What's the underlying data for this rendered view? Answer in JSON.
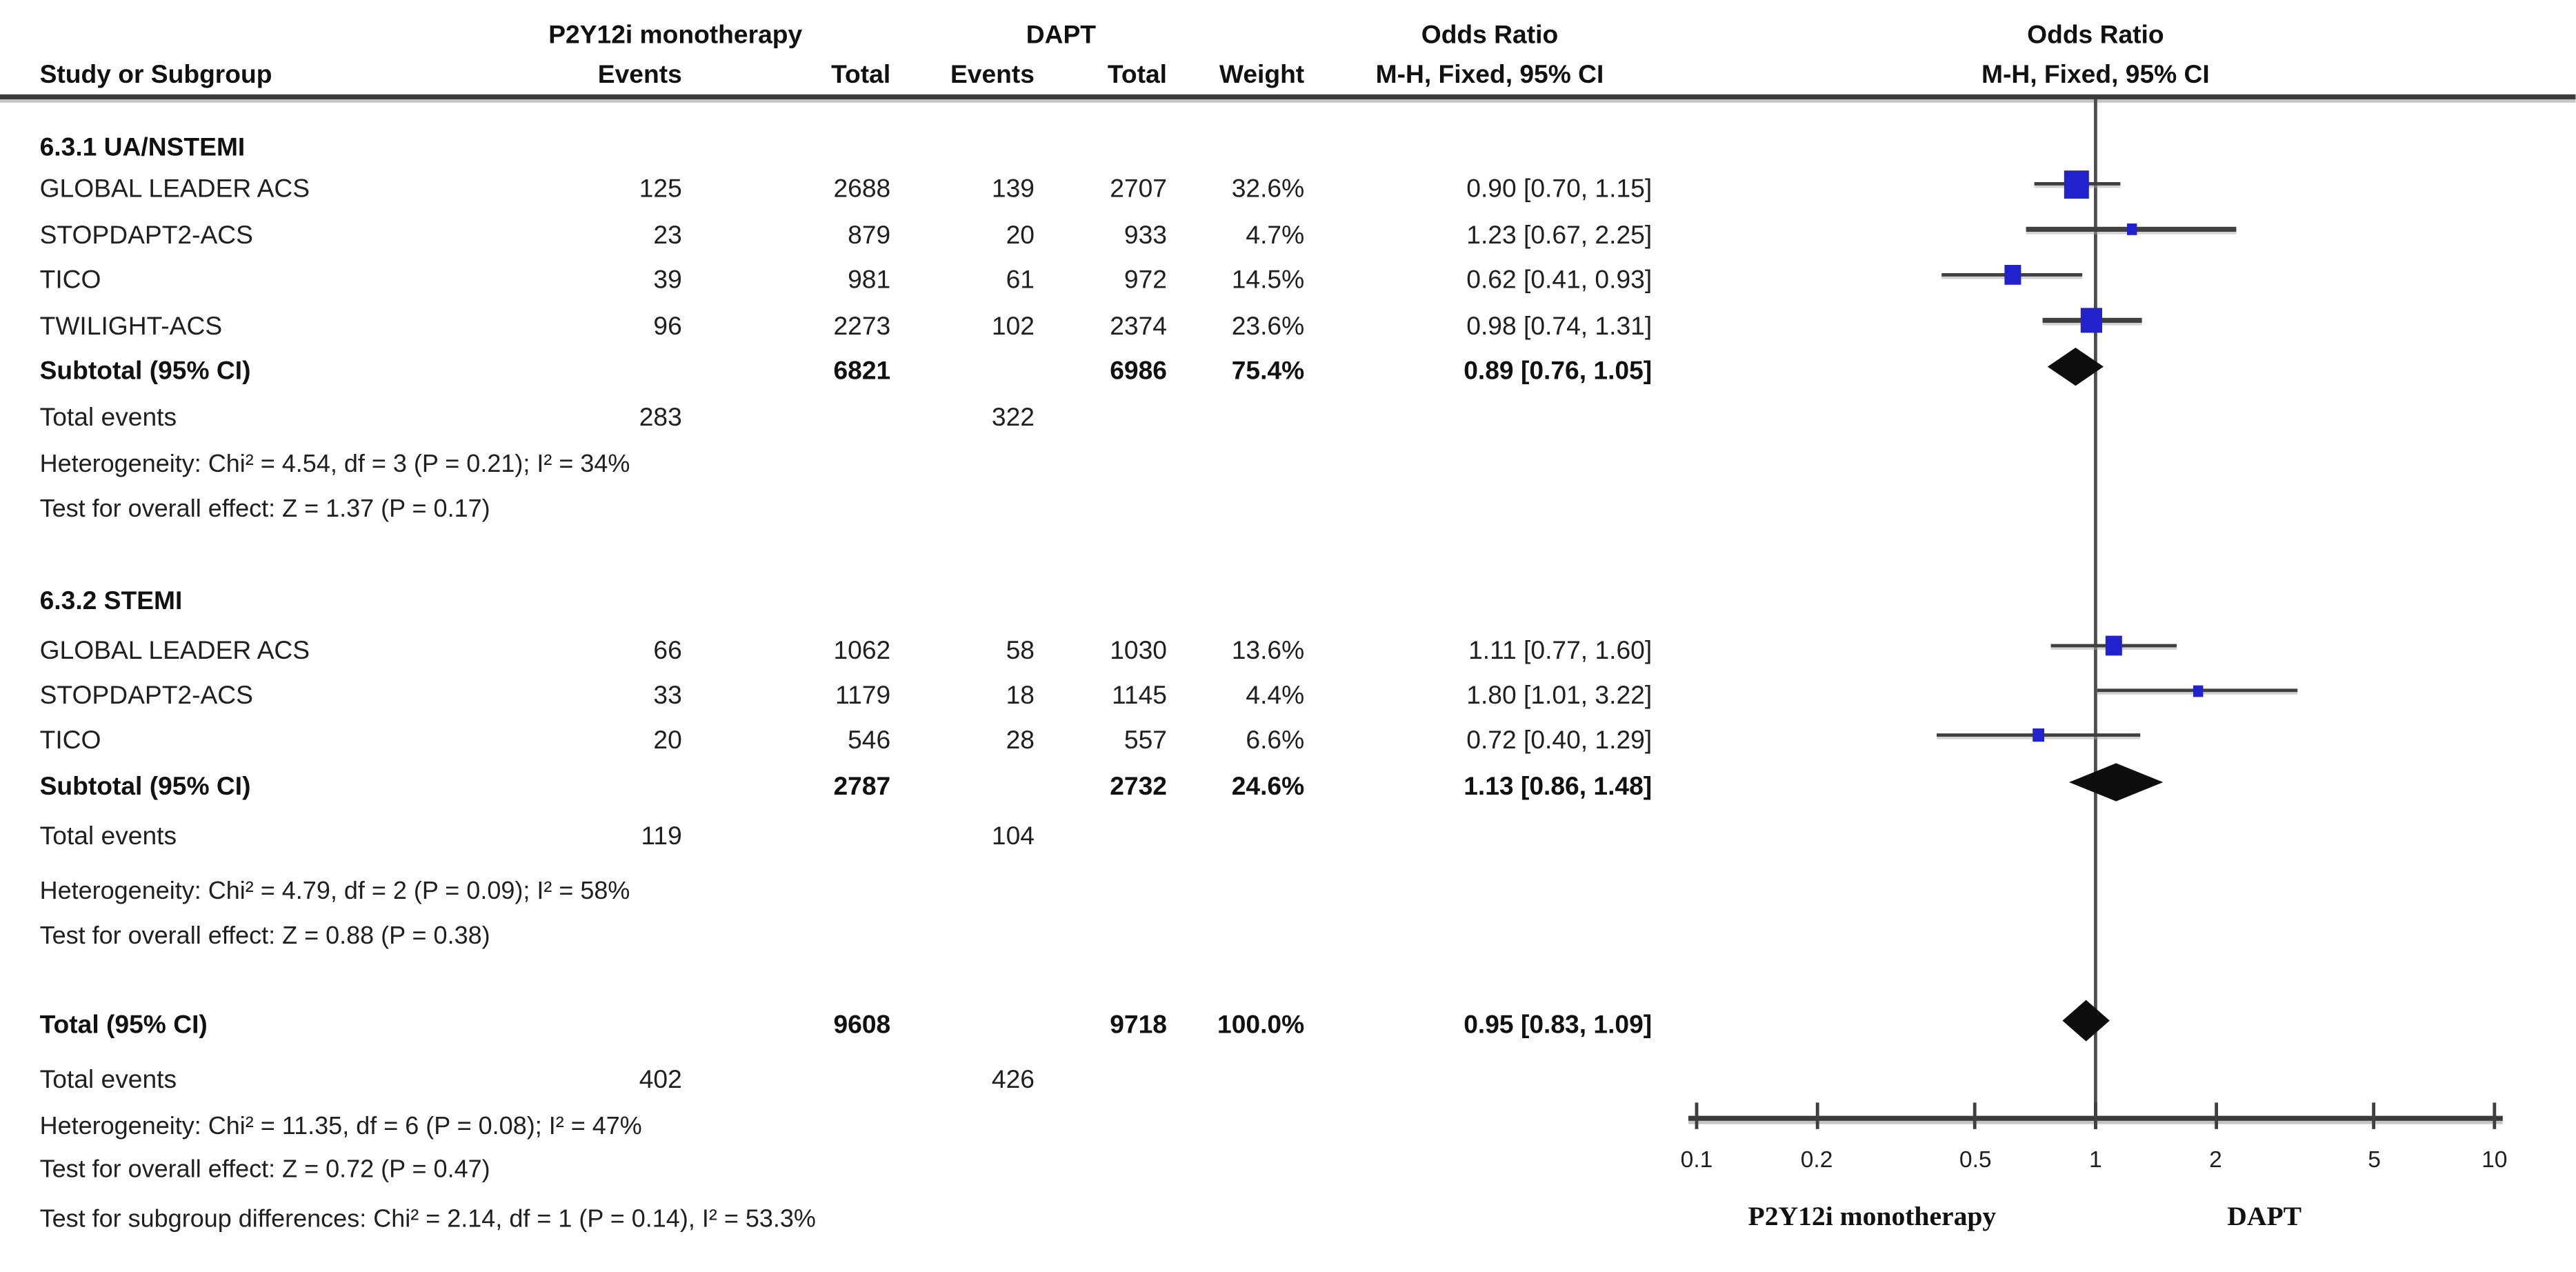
{
  "headers": {
    "group1": "P2Y12i monotherapy",
    "group2": "DAPT",
    "study_col": "Study or Subgroup",
    "events_col": "Events",
    "total_col": "Total",
    "weight_col": "Weight",
    "or_text_title": "Odds Ratio",
    "or_text_sub": "M-H, Fixed, 95% CI",
    "or_plot_title": "Odds Ratio",
    "or_plot_sub": "M-H, Fixed, 95% CI"
  },
  "sections": [
    {
      "heading": "6.3.1 UA/NSTEMI",
      "studies": [
        {
          "name": "GLOBAL LEADER ACS",
          "events1": "125",
          "total1": "2688",
          "events2": "139",
          "total2": "2707",
          "weight": "32.6%",
          "weight_value": 32.6,
          "or_text": "0.90 [0.70, 1.15]",
          "or": 0.9,
          "ci_low": 0.7,
          "ci_high": 1.15
        },
        {
          "name": "STOPDAPT2-ACS",
          "events1": "23",
          "total1": "879",
          "events2": "20",
          "total2": "933",
          "weight": "4.7%",
          "weight_value": 4.7,
          "or_text": "1.23 [0.67, 2.25]",
          "or": 1.23,
          "ci_low": 0.67,
          "ci_high": 2.25
        },
        {
          "name": "TICO",
          "events1": "39",
          "total1": "981",
          "events2": "61",
          "total2": "972",
          "weight": "14.5%",
          "weight_value": 14.5,
          "or_text": "0.62 [0.41, 0.93]",
          "or": 0.62,
          "ci_low": 0.41,
          "ci_high": 0.93
        },
        {
          "name": "TWILIGHT-ACS",
          "events1": "96",
          "total1": "2273",
          "events2": "102",
          "total2": "2374",
          "weight": "23.6%",
          "weight_value": 23.6,
          "or_text": "0.98 [0.74, 1.31]",
          "or": 0.98,
          "ci_low": 0.74,
          "ci_high": 1.31
        }
      ],
      "subtotal": {
        "label": "Subtotal (95% CI)",
        "total1": "6821",
        "total2": "6986",
        "weight": "75.4%",
        "or_text": "0.89 [0.76, 1.05]",
        "or": 0.89,
        "ci_low": 0.76,
        "ci_high": 1.05
      },
      "total_events": {
        "label": "Total events",
        "events1": "283",
        "events2": "322"
      },
      "heterogeneity": "Heterogeneity: Chi² = 4.54, df = 3 (P = 0.21); I² = 34%",
      "overall_effect": "Test for overall effect: Z = 1.37 (P = 0.17)"
    },
    {
      "heading": "6.3.2 STEMI",
      "studies": [
        {
          "name": "GLOBAL LEADER ACS",
          "events1": "66",
          "total1": "1062",
          "events2": "58",
          "total2": "1030",
          "weight": "13.6%",
          "weight_value": 13.6,
          "or_text": "1.11 [0.77, 1.60]",
          "or": 1.11,
          "ci_low": 0.77,
          "ci_high": 1.6
        },
        {
          "name": "STOPDAPT2-ACS",
          "events1": "33",
          "total1": "1179",
          "events2": "18",
          "total2": "1145",
          "weight": "4.4%",
          "weight_value": 4.4,
          "or_text": "1.80 [1.01, 3.22]",
          "or": 1.8,
          "ci_low": 1.01,
          "ci_high": 3.22
        },
        {
          "name": "TICO",
          "events1": "20",
          "total1": "546",
          "events2": "28",
          "total2": "557",
          "weight": "6.6%",
          "weight_value": 6.6,
          "or_text": "0.72 [0.40, 1.29]",
          "or": 0.72,
          "ci_low": 0.4,
          "ci_high": 1.29
        }
      ],
      "subtotal": {
        "label": "Subtotal (95% CI)",
        "total1": "2787",
        "total2": "2732",
        "weight": "24.6%",
        "or_text": "1.13 [0.86, 1.48]",
        "or": 1.13,
        "ci_low": 0.86,
        "ci_high": 1.48
      },
      "total_events": {
        "label": "Total events",
        "events1": "119",
        "events2": "104"
      },
      "heterogeneity": "Heterogeneity: Chi² = 4.79, df = 2 (P = 0.09); I² = 58%",
      "overall_effect": "Test for overall effect: Z = 0.88 (P = 0.38)"
    }
  ],
  "grand_total": {
    "label": "Total (95% CI)",
    "total1": "9608",
    "total2": "9718",
    "weight": "100.0%",
    "or_text": "0.95 [0.83, 1.09]",
    "or": 0.95,
    "ci_low": 0.83,
    "ci_high": 1.09,
    "total_events": {
      "label": "Total events",
      "events1": "402",
      "events2": "426"
    },
    "heterogeneity": "Heterogeneity: Chi² = 11.35, df = 6 (P = 0.08); I² = 47%",
    "overall_effect": "Test for overall effect: Z = 0.72 (P = 0.47)",
    "subgroup_diff": "Test for subgroup differences: Chi² = 2.14, df = 1 (P = 0.14), I² = 53.3%"
  },
  "axis": {
    "tick_labels": [
      "0.1",
      "0.2",
      "0.5",
      "1",
      "2",
      "5",
      "10"
    ],
    "tick_values": [
      0.1,
      0.2,
      0.5,
      1,
      2,
      5,
      10
    ],
    "left_label": "P2Y12i monotherapy",
    "right_label": "DAPT"
  },
  "colors": {
    "square": "#2222cc",
    "diamond": "#0e0e0e",
    "ci_line": "#3f3f3f",
    "axis": "#3f3f3f",
    "text": "#1f1f1f"
  },
  "chart_data": {
    "type": "scatter",
    "subtype": "forest-plot",
    "title": "Odds Ratio M-H, Fixed, 95% CI",
    "x_scale": "log10",
    "x_range": [
      0.1,
      10
    ],
    "x_ticks": [
      0.1,
      0.2,
      0.5,
      1,
      2,
      5,
      10
    ],
    "left_direction_label": "P2Y12i monotherapy",
    "right_direction_label": "DAPT",
    "series": [
      {
        "name": "6.3.1 UA/NSTEMI",
        "points": [
          {
            "study": "GLOBAL LEADER ACS",
            "or": 0.9,
            "ci": [
              0.7,
              1.15
            ],
            "weight_pct": 32.6
          },
          {
            "study": "STOPDAPT2-ACS",
            "or": 1.23,
            "ci": [
              0.67,
              2.25
            ],
            "weight_pct": 4.7
          },
          {
            "study": "TICO",
            "or": 0.62,
            "ci": [
              0.41,
              0.93
            ],
            "weight_pct": 14.5
          },
          {
            "study": "TWILIGHT-ACS",
            "or": 0.98,
            "ci": [
              0.74,
              1.31
            ],
            "weight_pct": 23.6
          }
        ],
        "subtotal": {
          "or": 0.89,
          "ci": [
            0.76,
            1.05
          ],
          "weight_pct": 75.4
        }
      },
      {
        "name": "6.3.2 STEMI",
        "points": [
          {
            "study": "GLOBAL LEADER ACS",
            "or": 1.11,
            "ci": [
              0.77,
              1.6
            ],
            "weight_pct": 13.6
          },
          {
            "study": "STOPDAPT2-ACS",
            "or": 1.8,
            "ci": [
              1.01,
              3.22
            ],
            "weight_pct": 4.4
          },
          {
            "study": "TICO",
            "or": 0.72,
            "ci": [
              0.4,
              1.29
            ],
            "weight_pct": 6.6
          }
        ],
        "subtotal": {
          "or": 1.13,
          "ci": [
            0.86,
            1.48
          ],
          "weight_pct": 24.6
        }
      }
    ],
    "total": {
      "or": 0.95,
      "ci": [
        0.83,
        1.09
      ],
      "weight_pct": 100.0
    }
  }
}
